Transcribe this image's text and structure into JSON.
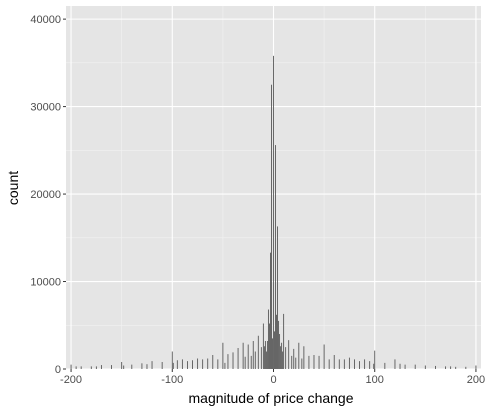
{
  "chart_data": {
    "type": "bar",
    "title": "",
    "xlabel": "magnitude of price change",
    "ylabel": "count",
    "xlim": [
      -205,
      205
    ],
    "ylim": [
      0,
      41500
    ],
    "x_ticks": [
      -200,
      -100,
      0,
      100,
      200
    ],
    "x_tick_labels": [
      "-200",
      "-100",
      "0",
      "100",
      "200"
    ],
    "y_ticks": [
      0,
      10000,
      20000,
      30000,
      40000
    ],
    "y_tick_labels": [
      "0",
      "10000",
      "20000",
      "30000",
      "40000"
    ],
    "grid": true,
    "legend": "none",
    "colors": {
      "panel": "#e5e5e5",
      "grid_major": "#ffffff",
      "grid_minor": "#f2f2f2",
      "bar": "#595959",
      "tick_mark": "#333333"
    },
    "series": [
      {
        "x": [
          -200,
          -195,
          -190,
          -180,
          -175,
          -170,
          -160,
          -150,
          -148,
          -140,
          -130,
          -125,
          -120,
          -110,
          -100,
          -99,
          -95,
          -90,
          -85,
          -80,
          -75,
          -70,
          -65,
          -60,
          -55,
          -50,
          -48,
          -45,
          -40,
          -35,
          -30,
          -28,
          -25,
          -22,
          -20,
          -18,
          -15,
          -12,
          -10,
          -9,
          -8,
          -7,
          -6,
          -5,
          -4,
          -3,
          -2,
          -1,
          0,
          1,
          2,
          3,
          4,
          5,
          6,
          7,
          8,
          9,
          10,
          12,
          15,
          18,
          20,
          22,
          25,
          28,
          30,
          35,
          40,
          45,
          50,
          55,
          60,
          65,
          70,
          75,
          80,
          85,
          90,
          95,
          99,
          100,
          110,
          120,
          125,
          130,
          140,
          150,
          160,
          170,
          175,
          180,
          190,
          200
        ],
        "values": [
          500,
          300,
          300,
          300,
          300,
          450,
          450,
          800,
          400,
          500,
          650,
          550,
          900,
          800,
          2000,
          700,
          1000,
          1100,
          900,
          1000,
          1200,
          1100,
          1200,
          1600,
          1100,
          3000,
          700,
          1700,
          1900,
          2400,
          3000,
          1400,
          2800,
          1500,
          3200,
          2000,
          3800,
          2500,
          5200,
          2600,
          3200,
          2000,
          3200,
          6800,
          5200,
          13300,
          32500,
          3500,
          35800,
          4300,
          25600,
          6200,
          16300,
          5500,
          4000,
          2600,
          3000,
          2000,
          6300,
          2500,
          3300,
          1500,
          2300,
          1300,
          3000,
          1200,
          2600,
          1500,
          1600,
          1500,
          2800,
          1100,
          1600,
          1100,
          1100,
          1300,
          1100,
          900,
          1100,
          900,
          600,
          2100,
          700,
          1100,
          600,
          500,
          500,
          400,
          350,
          300,
          300,
          250,
          250,
          400
        ]
      }
    ]
  }
}
